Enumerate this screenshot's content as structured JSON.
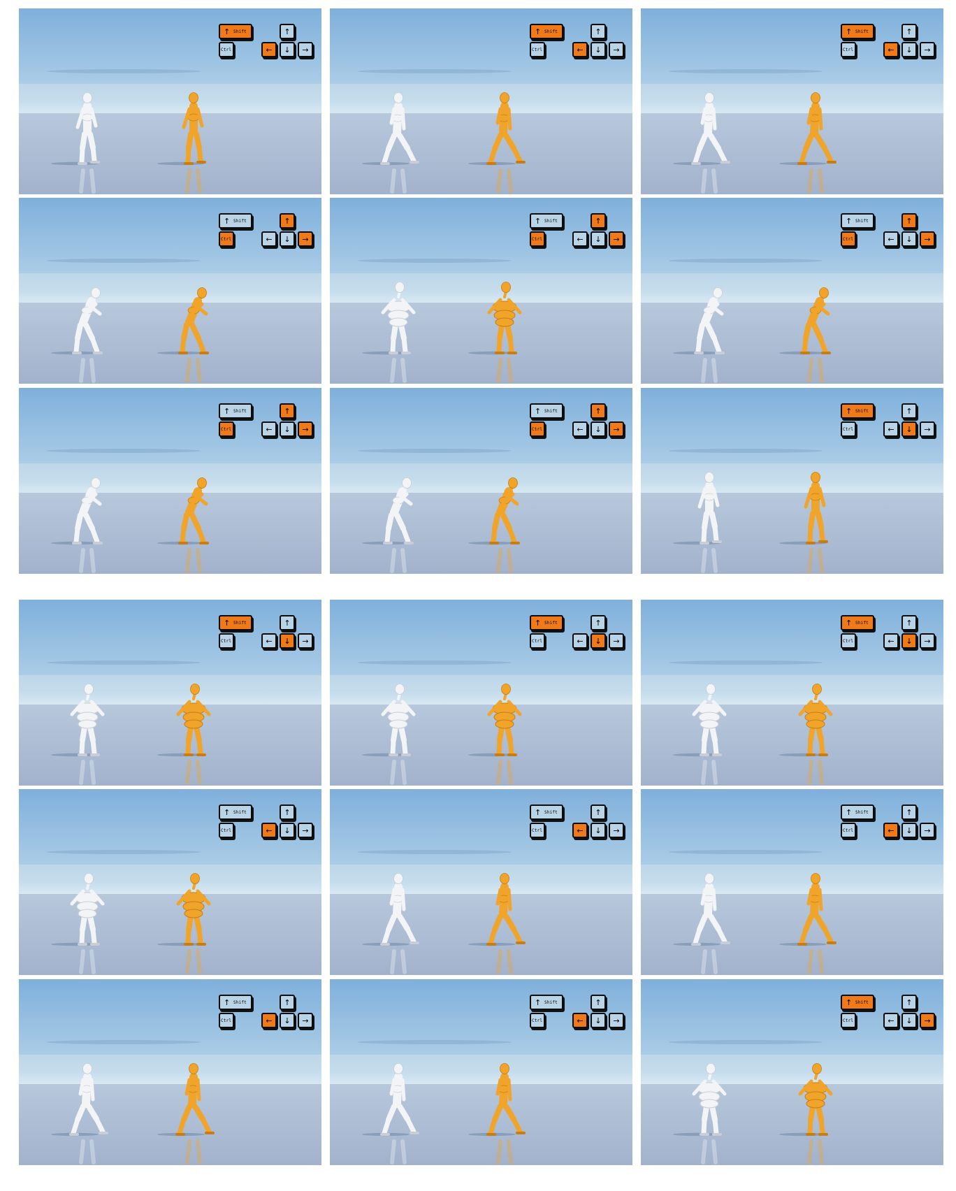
{
  "keys": {
    "shift_label": "Shift",
    "ctrl_label": "Ctrl",
    "shift_arrow": "↑",
    "up": "↑",
    "left": "←",
    "down": "↓",
    "right": "→"
  },
  "colors": {
    "key_active": "#ef7a17",
    "key_idle": "#b9d4e6",
    "figure_reference": "#f2f4f6",
    "figure_controlled": "#f0a52a"
  },
  "frames": [
    {
      "active": [
        "shift",
        "left"
      ],
      "pose": "walk"
    },
    {
      "active": [
        "shift",
        "left"
      ],
      "pose": "stride"
    },
    {
      "active": [
        "shift",
        "left"
      ],
      "pose": "stride"
    },
    {
      "active": [
        "ctrl",
        "up",
        "right"
      ],
      "pose": "crouch"
    },
    {
      "active": [
        "ctrl",
        "up",
        "right"
      ],
      "pose": "bulky"
    },
    {
      "active": [
        "ctrl",
        "up",
        "right"
      ],
      "pose": "crouch"
    },
    {
      "active": [
        "ctrl",
        "up",
        "right"
      ],
      "pose": "crouch"
    },
    {
      "active": [
        "ctrl",
        "up",
        "right"
      ],
      "pose": "crouch"
    },
    {
      "active": [
        "shift",
        "down"
      ],
      "pose": "walk"
    },
    {
      "active": [
        "shift",
        "down"
      ],
      "pose": "bulky"
    },
    {
      "active": [
        "shift",
        "down"
      ],
      "pose": "bulky"
    },
    {
      "active": [
        "shift",
        "down"
      ],
      "pose": "bulky"
    },
    {
      "active": [
        "left"
      ],
      "pose": "bulky"
    },
    {
      "active": [
        "left"
      ],
      "pose": "stride"
    },
    {
      "active": [
        "left"
      ],
      "pose": "stride"
    },
    {
      "active": [
        "left"
      ],
      "pose": "stride"
    },
    {
      "active": [
        "left"
      ],
      "pose": "stride"
    },
    {
      "active": [
        "shift",
        "right"
      ],
      "pose": "bulky"
    }
  ]
}
